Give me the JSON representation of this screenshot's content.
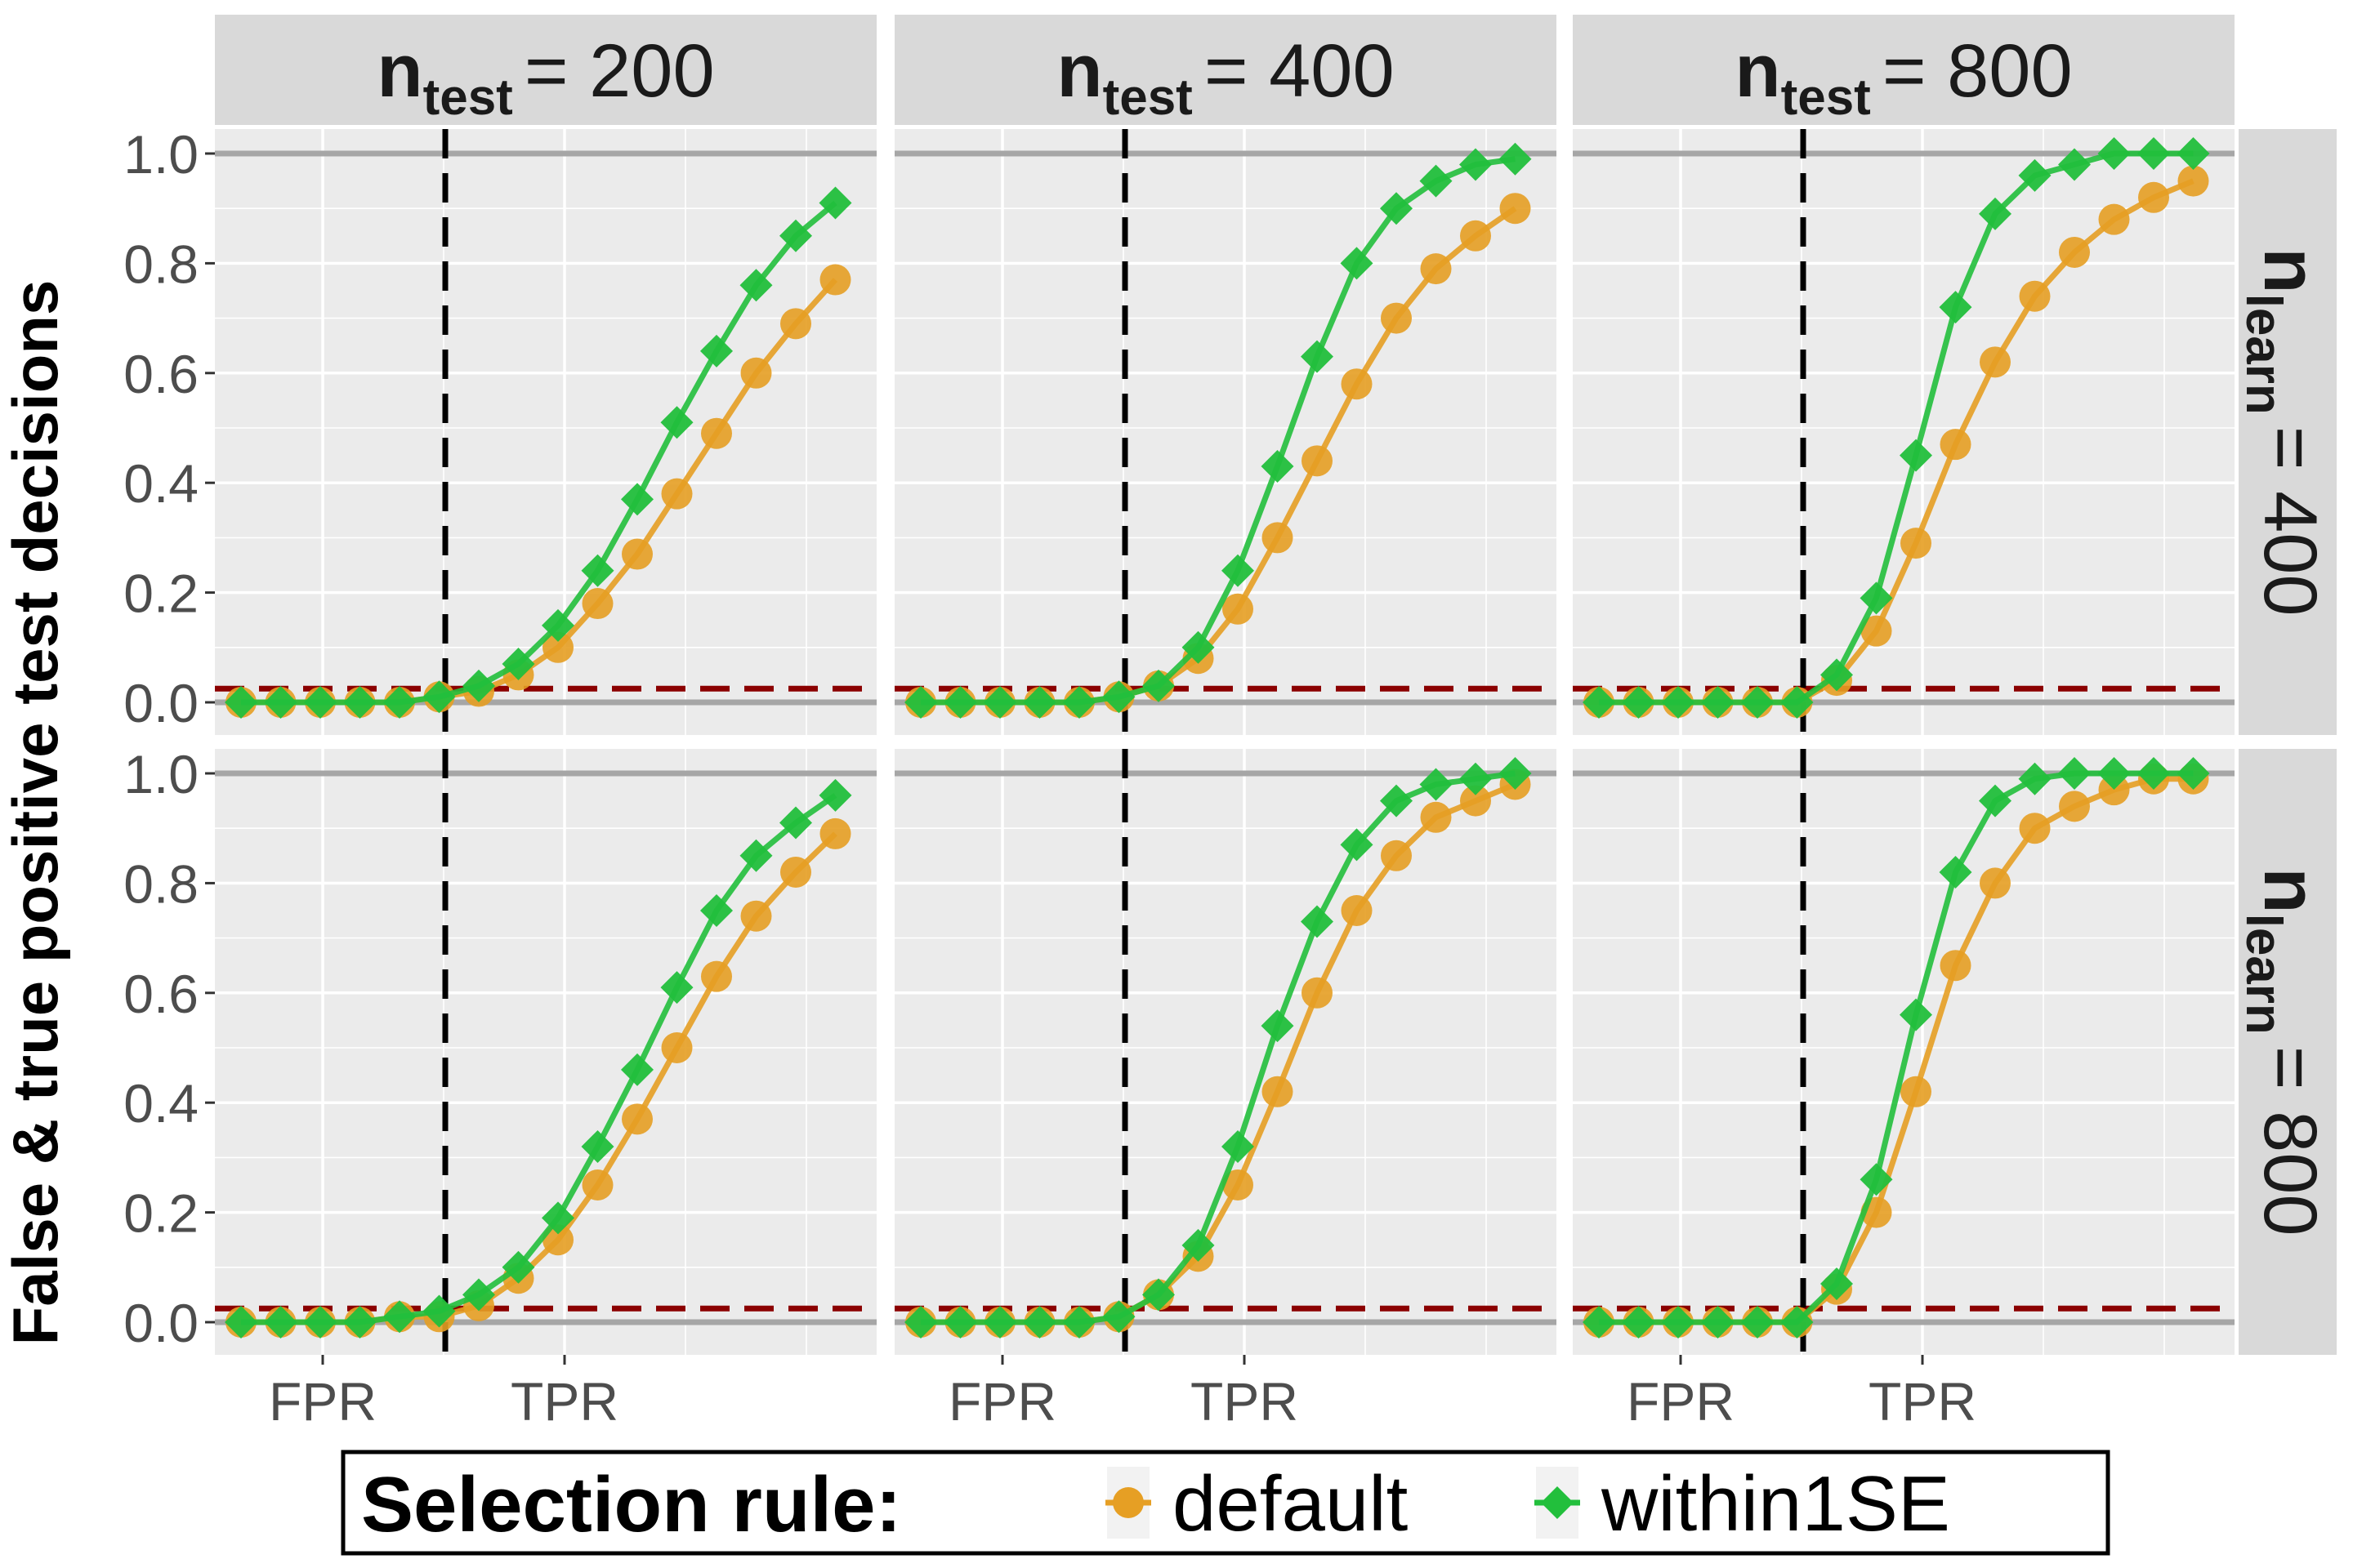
{
  "chart_data": {
    "type": "line",
    "ylabel": "False & true positive test decisions",
    "y_ticks": [
      "0.0",
      "0.2",
      "0.4",
      "0.6",
      "0.8",
      "1.0"
    ],
    "x_tick_labels": [
      "FPR",
      "TPR"
    ],
    "col_strip": {
      "base": "n",
      "sub": "test",
      "values": [
        "= 200",
        "= 400",
        "= 800"
      ]
    },
    "row_strip": {
      "base": "n",
      "sub": "learn",
      "values": [
        "= 400",
        "= 800"
      ]
    },
    "reference_lines": {
      "solid_y": [
        0,
        1
      ],
      "dashed_y": 0.025
    },
    "colors": {
      "default": "#e69f24",
      "within1SE": "#22bf3c",
      "dashed_ref": "#8b0000",
      "vline": "#000000",
      "panel_bg": "#ebebeb",
      "strip_bg": "#d9d9d9",
      "solid_ref": "#a6a6a6"
    },
    "legend": {
      "title": "Selection rule:",
      "position": "bottom",
      "entries": [
        {
          "label": "default",
          "marker": "circle"
        },
        {
          "label": "within1SE",
          "marker": "diamond"
        }
      ]
    },
    "panels": [
      {
        "row": 0,
        "col": 0,
        "series": [
          {
            "name": "default",
            "values": [
              0,
              0,
              0,
              0,
              0,
              0.01,
              0.02,
              0.05,
              0.1,
              0.18,
              0.27,
              0.38,
              0.49,
              0.6,
              0.69,
              0.77
            ]
          },
          {
            "name": "within1SE",
            "values": [
              0,
              0,
              0,
              0,
              0,
              0.01,
              0.03,
              0.07,
              0.14,
              0.24,
              0.37,
              0.51,
              0.64,
              0.76,
              0.85,
              0.91
            ]
          }
        ]
      },
      {
        "row": 0,
        "col": 1,
        "series": [
          {
            "name": "default",
            "values": [
              0,
              0,
              0,
              0,
              0,
              0.01,
              0.03,
              0.08,
              0.17,
              0.3,
              0.44,
              0.58,
              0.7,
              0.79,
              0.85,
              0.9
            ]
          },
          {
            "name": "within1SE",
            "values": [
              0,
              0,
              0,
              0,
              0,
              0.01,
              0.03,
              0.1,
              0.24,
              0.43,
              0.63,
              0.8,
              0.9,
              0.95,
              0.98,
              0.99
            ]
          }
        ]
      },
      {
        "row": 0,
        "col": 2,
        "series": [
          {
            "name": "default",
            "values": [
              0,
              0,
              0,
              0,
              0,
              0,
              0.04,
              0.13,
              0.29,
              0.47,
              0.62,
              0.74,
              0.82,
              0.88,
              0.92,
              0.95
            ]
          },
          {
            "name": "within1SE",
            "values": [
              0,
              0,
              0,
              0,
              0,
              0,
              0.05,
              0.19,
              0.45,
              0.72,
              0.89,
              0.96,
              0.98,
              1.0,
              1.0,
              1.0
            ]
          }
        ]
      },
      {
        "row": 1,
        "col": 0,
        "series": [
          {
            "name": "default",
            "values": [
              0,
              0,
              0,
              0,
              0.01,
              0.01,
              0.03,
              0.08,
              0.15,
              0.25,
              0.37,
              0.5,
              0.63,
              0.74,
              0.82,
              0.89
            ]
          },
          {
            "name": "within1SE",
            "values": [
              0,
              0,
              0,
              0,
              0.01,
              0.02,
              0.05,
              0.1,
              0.19,
              0.32,
              0.46,
              0.61,
              0.75,
              0.85,
              0.91,
              0.96
            ]
          }
        ]
      },
      {
        "row": 1,
        "col": 1,
        "series": [
          {
            "name": "default",
            "values": [
              0,
              0,
              0,
              0,
              0,
              0.01,
              0.05,
              0.12,
              0.25,
              0.42,
              0.6,
              0.75,
              0.85,
              0.92,
              0.95,
              0.98
            ]
          },
          {
            "name": "within1SE",
            "values": [
              0,
              0,
              0,
              0,
              0,
              0.01,
              0.05,
              0.14,
              0.32,
              0.54,
              0.73,
              0.87,
              0.95,
              0.98,
              0.99,
              1.0
            ]
          }
        ]
      },
      {
        "row": 1,
        "col": 2,
        "series": [
          {
            "name": "default",
            "values": [
              0,
              0,
              0,
              0,
              0,
              0,
              0.06,
              0.2,
              0.42,
              0.65,
              0.8,
              0.9,
              0.94,
              0.97,
              0.99,
              0.99
            ]
          },
          {
            "name": "within1SE",
            "values": [
              0,
              0,
              0,
              0,
              0,
              0,
              0.07,
              0.26,
              0.56,
              0.82,
              0.95,
              0.99,
              1.0,
              1.0,
              1.0,
              1.0
            ]
          }
        ]
      }
    ]
  }
}
